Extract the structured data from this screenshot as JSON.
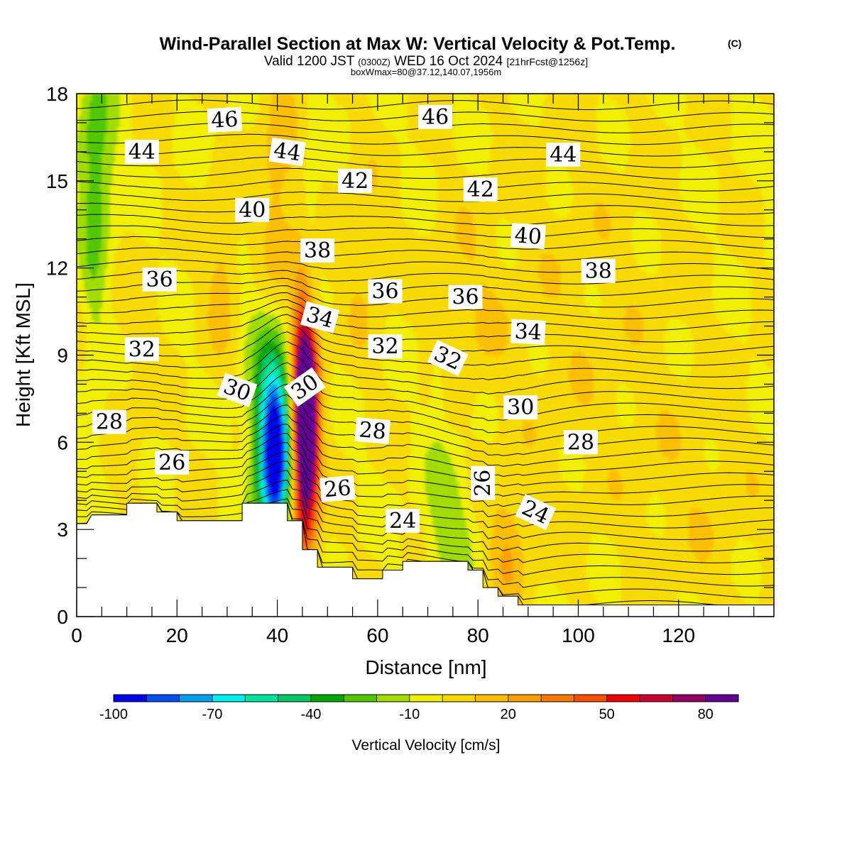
{
  "chart_data": {
    "type": "heatmap",
    "title": "Wind-Parallel Section at Max W: Vertical Velocity & Pot.Temp.",
    "title_mark": "(C)",
    "subtitle": {
      "valid": "Valid 1200 JST",
      "zulu": "(0300Z)",
      "date": "WED 16 Oct 2024",
      "fcst": "[21hrFcst@1256z]"
    },
    "box_info": "boxWmax=80@37.12,140.07,1956m",
    "xlabel": "Distance [nm]",
    "ylabel": "Height [Kft MSL]",
    "xlim": [
      0,
      139
    ],
    "ylim": [
      0,
      18
    ],
    "x_ticks": [
      "0",
      "20",
      "40",
      "60",
      "80",
      "100",
      "120"
    ],
    "y_ticks": [
      "0",
      "3",
      "6",
      "9",
      "12",
      "15",
      "18"
    ],
    "colorbar": {
      "label": "Vertical Velocity [cm/s]",
      "tick_labels": [
        "-100",
        "-70",
        "-40",
        "-10",
        "20",
        "50",
        "80"
      ],
      "colors": [
        "#0000f0",
        "#0050f0",
        "#00a0f0",
        "#00f0f0",
        "#00e6a0",
        "#00c864",
        "#00a800",
        "#50c800",
        "#a0dc00",
        "#f0f000",
        "#f7da00",
        "#fac000",
        "#faa000",
        "#fa7800",
        "#fa5000",
        "#f00000",
        "#c80032",
        "#960064",
        "#640096"
      ]
    },
    "terrain": [
      [
        0,
        3.2
      ],
      [
        2,
        3.2
      ],
      [
        3,
        3.5
      ],
      [
        10,
        3.5
      ],
      [
        10,
        3.9
      ],
      [
        16,
        3.9
      ],
      [
        16,
        3.6
      ],
      [
        20,
        3.6
      ],
      [
        20,
        3.3
      ],
      [
        33,
        3.3
      ],
      [
        33,
        3.9
      ],
      [
        42,
        3.9
      ],
      [
        42,
        3.3
      ],
      [
        45,
        3.3
      ],
      [
        45,
        2.3
      ],
      [
        48,
        2.3
      ],
      [
        48,
        1.7
      ],
      [
        55,
        1.7
      ],
      [
        55,
        1.3
      ],
      [
        61,
        1.3
      ],
      [
        61,
        1.6
      ],
      [
        65,
        1.6
      ],
      [
        65,
        1.9
      ],
      [
        78,
        1.9
      ],
      [
        78,
        1.6
      ],
      [
        81,
        1.6
      ],
      [
        81,
        1.0
      ],
      [
        84,
        1.0
      ],
      [
        84,
        0.7
      ],
      [
        88,
        0.7
      ],
      [
        88,
        0.4
      ],
      [
        139,
        0.4
      ]
    ],
    "w_features": [
      {
        "x": 39.5,
        "y": 5.5,
        "sx": 2.2,
        "sy": 2.0,
        "value": -100
      },
      {
        "x": 39.2,
        "y": 7.6,
        "sx": 3.6,
        "sy": 3.0,
        "value": -30
      },
      {
        "x": 45.8,
        "y": 6.8,
        "sx": 1.6,
        "sy": 2.4,
        "value": 85
      },
      {
        "x": 45.3,
        "y": 8.5,
        "sx": 1.8,
        "sy": 2.8,
        "value": 45
      },
      {
        "x": 45.0,
        "y": 5.0,
        "sx": 2.4,
        "sy": 2.6,
        "value": 35
      },
      {
        "x": 40.0,
        "y": 13.5,
        "sx": 2.8,
        "sy": 3.5,
        "value": 20
      },
      {
        "x": 29.0,
        "y": 12.0,
        "sx": 2.2,
        "sy": 2.0,
        "value": 16
      },
      {
        "x": 46.5,
        "y": 12.5,
        "sx": 1.4,
        "sy": 3.0,
        "value": -14
      },
      {
        "x": 4.0,
        "y": 15.8,
        "sx": 3.0,
        "sy": 2.2,
        "value": -22
      },
      {
        "x": 3.5,
        "y": 11.5,
        "sx": 1.6,
        "sy": 5.0,
        "value": -12
      },
      {
        "x": 74.0,
        "y": 3.4,
        "sx": 3.6,
        "sy": 1.8,
        "value": -18
      },
      {
        "x": 86.0,
        "y": 2.4,
        "sx": 2.6,
        "sy": 1.4,
        "value": 20
      },
      {
        "x": 78.0,
        "y": 10.5,
        "sx": 5.0,
        "sy": 2.5,
        "value": 8
      },
      {
        "x": 57.0,
        "y": 12.5,
        "sx": 3.0,
        "sy": 2.5,
        "value": 10
      },
      {
        "x": 100.0,
        "y": 10.0,
        "sx": 14.0,
        "sy": 5.0,
        "value": 6
      },
      {
        "x": 125.0,
        "y": 4.0,
        "sx": 10.0,
        "sy": 3.0,
        "value": 6
      },
      {
        "x": 72.0,
        "y": 8.0,
        "sx": 1.2,
        "sy": 1.0,
        "value": -12
      },
      {
        "x": 12.0,
        "y": 8.5,
        "sx": 4.0,
        "sy": 3.0,
        "value": 5
      }
    ],
    "theta_labels": [
      {
        "text": "46",
        "x": 29.5,
        "y": 17.1,
        "angle": -3
      },
      {
        "text": "46",
        "x": 71.5,
        "y": 17.2,
        "angle": 0
      },
      {
        "text": "44",
        "x": 13.0,
        "y": 16.0,
        "angle": 0
      },
      {
        "text": "44",
        "x": 42.0,
        "y": 16.0,
        "angle": 8
      },
      {
        "text": "44",
        "x": 97.0,
        "y": 15.9,
        "angle": 0
      },
      {
        "text": "42",
        "x": 55.5,
        "y": 15.0,
        "angle": 0
      },
      {
        "text": "42",
        "x": 80.5,
        "y": 14.7,
        "angle": 0
      },
      {
        "text": "40",
        "x": 35.0,
        "y": 14.0,
        "angle": 0
      },
      {
        "text": "40",
        "x": 90.0,
        "y": 13.1,
        "angle": 4
      },
      {
        "text": "38",
        "x": 48.0,
        "y": 12.6,
        "angle": 0
      },
      {
        "text": "38",
        "x": 104.0,
        "y": 11.9,
        "angle": 0
      },
      {
        "text": "36",
        "x": 16.5,
        "y": 11.6,
        "angle": 0
      },
      {
        "text": "36",
        "x": 61.5,
        "y": 11.2,
        "angle": 0
      },
      {
        "text": "36",
        "x": 77.5,
        "y": 11.0,
        "angle": 0
      },
      {
        "text": "34",
        "x": 48.5,
        "y": 10.3,
        "angle": 15
      },
      {
        "text": "34",
        "x": 90.0,
        "y": 9.8,
        "angle": 3
      },
      {
        "text": "32",
        "x": 13.0,
        "y": 9.2,
        "angle": 0
      },
      {
        "text": "32",
        "x": 61.5,
        "y": 9.3,
        "angle": 0
      },
      {
        "text": "32",
        "x": 74.0,
        "y": 8.9,
        "angle": 25
      },
      {
        "text": "30",
        "x": 32.0,
        "y": 7.8,
        "angle": 20
      },
      {
        "text": "30",
        "x": 45.5,
        "y": 7.9,
        "angle": -35
      },
      {
        "text": "30",
        "x": 88.5,
        "y": 7.2,
        "angle": 0
      },
      {
        "text": "28",
        "x": 6.5,
        "y": 6.7,
        "angle": 0
      },
      {
        "text": "28",
        "x": 59.0,
        "y": 6.4,
        "angle": 5
      },
      {
        "text": "28",
        "x": 100.5,
        "y": 6.0,
        "angle": 0
      },
      {
        "text": "26",
        "x": 19.0,
        "y": 5.3,
        "angle": 0
      },
      {
        "text": "26",
        "x": 52.0,
        "y": 4.4,
        "angle": -5
      },
      {
        "text": "26",
        "x": 81.0,
        "y": 4.6,
        "angle": -90
      },
      {
        "text": "24",
        "x": 65.0,
        "y": 3.3,
        "angle": 0
      },
      {
        "text": "24",
        "x": 91.5,
        "y": 3.6,
        "angle": 25
      }
    ]
  }
}
